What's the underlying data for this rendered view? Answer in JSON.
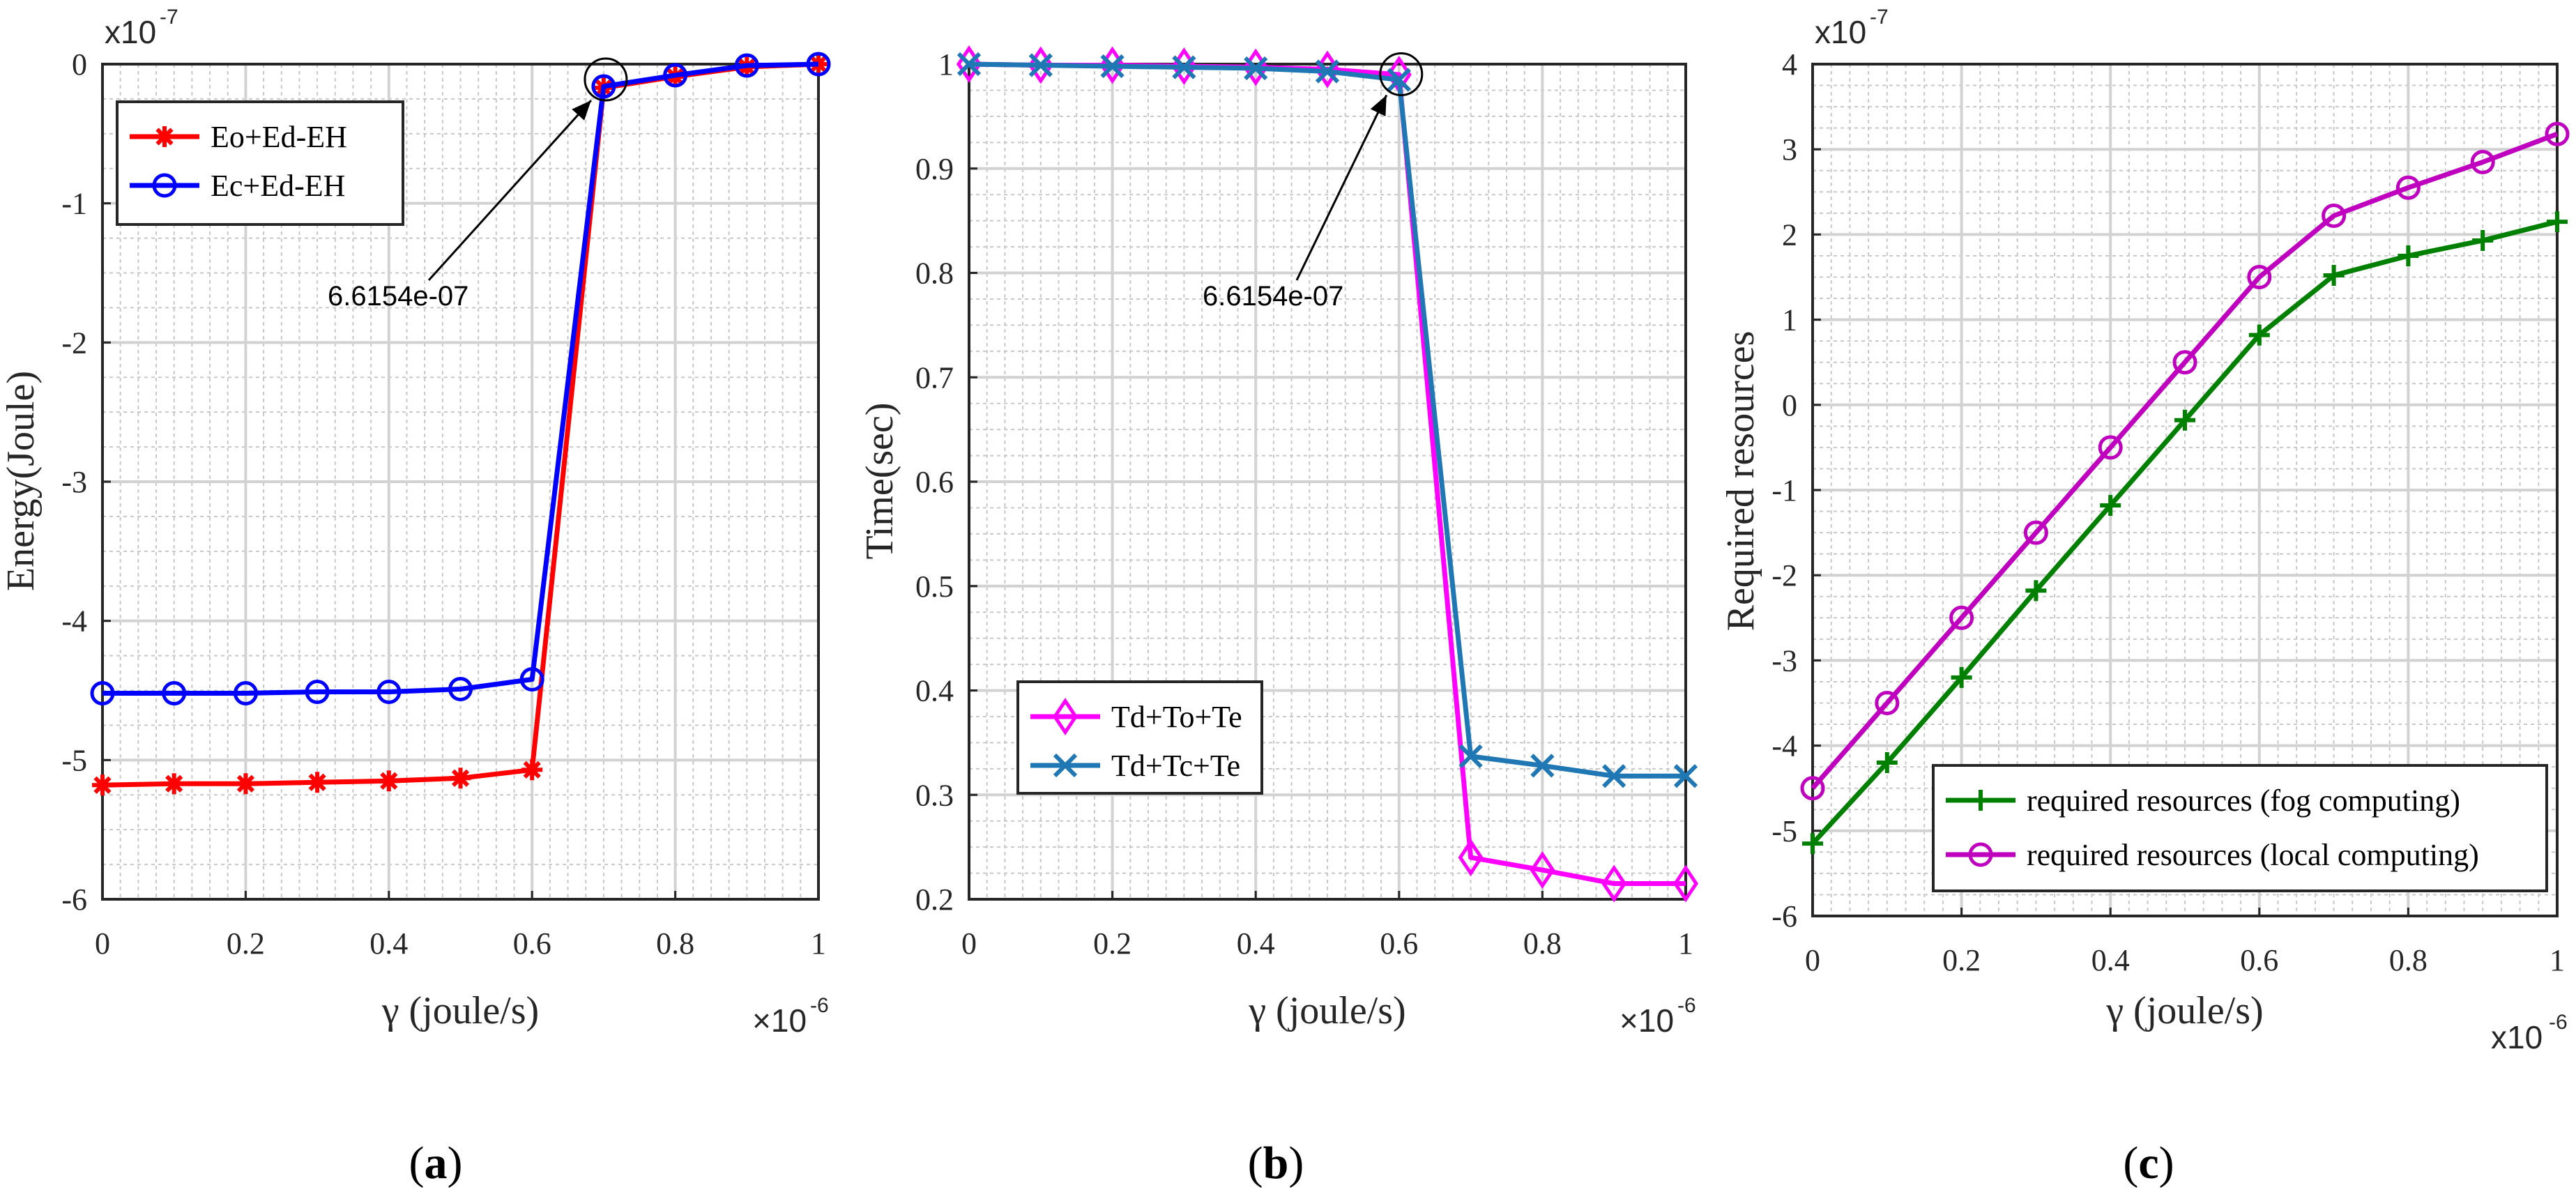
{
  "chart_data": [
    {
      "type": "line",
      "caption": "(a)",
      "caption_letter": "a",
      "xlabel": "γ (joule/s)",
      "ylabel": "Energy(Joule)",
      "x_multiplier": "×10",
      "x_multiplier_exp": "-6",
      "y_multiplier": "x10",
      "y_multiplier_exp": "-7",
      "xlim": [
        0,
        1
      ],
      "ylim": [
        -6,
        0
      ],
      "xticks": [
        "0",
        "0.2",
        "0.4",
        "0.6",
        "0.8",
        "1"
      ],
      "yticks": [
        "0",
        "-1",
        "-2",
        "-3",
        "-4",
        "-5",
        "-6"
      ],
      "x": [
        0,
        0.1,
        0.2,
        0.3,
        0.4,
        0.5,
        0.6,
        0.7,
        0.8,
        0.9,
        1.0
      ],
      "series": [
        {
          "name": "Eo+Ed-EH",
          "color": "#ff0000",
          "marker": "asterisk",
          "values": [
            -5.18,
            -5.17,
            -5.17,
            -5.16,
            -5.15,
            -5.13,
            -5.07,
            -0.17,
            -0.09,
            -0.02,
            0.0
          ]
        },
        {
          "name": "Ec+Ed-EH",
          "color": "#0000ff",
          "marker": "circle",
          "values": [
            -4.52,
            -4.52,
            -4.52,
            -4.51,
            -4.51,
            -4.49,
            -4.42,
            -0.16,
            -0.08,
            -0.01,
            0.0
          ]
        }
      ],
      "annotation": {
        "text": "6.6154e-07",
        "x": 0.7,
        "y": -0.15
      },
      "legend": "top-left",
      "grid": true
    },
    {
      "type": "line",
      "caption": "(b)",
      "caption_letter": "b",
      "xlabel": "γ (joule/s)",
      "ylabel": "Time(sec)",
      "x_multiplier": "×10",
      "x_multiplier_exp": "-6",
      "xlim": [
        0,
        1
      ],
      "ylim": [
        0.2,
        1.0
      ],
      "xticks": [
        "0",
        "0.2",
        "0.4",
        "0.6",
        "0.8",
        "1"
      ],
      "yticks": [
        "1",
        "0.9",
        "0.8",
        "0.7",
        "0.6",
        "0.5",
        "0.4",
        "0.3",
        "0.2"
      ],
      "x": [
        0,
        0.1,
        0.2,
        0.3,
        0.4,
        0.5,
        0.6,
        0.7,
        0.8,
        0.9,
        1.0
      ],
      "series": [
        {
          "name": "Td+To+Te",
          "color": "#ff00ff",
          "marker": "diamond",
          "values": [
            1.0,
            0.999,
            0.999,
            0.998,
            0.997,
            0.995,
            0.99,
            0.24,
            0.228,
            0.215,
            0.215
          ]
        },
        {
          "name": "Td+Tc+Te",
          "color": "#1f77b4",
          "marker": "x",
          "values": [
            1.0,
            0.999,
            0.998,
            0.997,
            0.996,
            0.993,
            0.985,
            0.337,
            0.328,
            0.318,
            0.318
          ]
        }
      ],
      "annotation": {
        "text": "6.6154e-07",
        "x": 0.6,
        "y": 0.985
      },
      "legend": "bottom-left",
      "grid": true
    },
    {
      "type": "line",
      "caption": "(c)",
      "caption_letter": "c",
      "xlabel": "γ (joule/s)",
      "ylabel": "Required resources",
      "x_multiplier": "x10",
      "x_multiplier_exp": "-6",
      "y_multiplier": "x10",
      "y_multiplier_exp": "-7",
      "xlim": [
        0,
        1
      ],
      "ylim": [
        -6,
        4
      ],
      "xticks": [
        "0",
        "0.2",
        "0.4",
        "0.6",
        "0.8",
        "1"
      ],
      "yticks": [
        "4",
        "3",
        "2",
        "1",
        "0",
        "-1",
        "-2",
        "-3",
        "-4",
        "-5",
        "-6"
      ],
      "x": [
        0,
        0.1,
        0.2,
        0.3,
        0.4,
        0.5,
        0.6,
        0.7,
        0.8,
        0.9,
        1.0
      ],
      "series": [
        {
          "name": "required resources (fog computing)",
          "color": "#008000",
          "marker": "plus",
          "values": [
            -5.15,
            -4.2,
            -3.2,
            -2.18,
            -1.18,
            -0.18,
            0.82,
            1.52,
            1.75,
            1.93,
            2.15
          ]
        },
        {
          "name": "required resources (local computing)",
          "color": "#bf00bf",
          "marker": "circle",
          "values": [
            -4.5,
            -3.5,
            -2.5,
            -1.5,
            -0.5,
            0.5,
            1.5,
            2.22,
            2.55,
            2.85,
            3.18
          ]
        }
      ],
      "legend": "bottom-right",
      "grid": true
    }
  ]
}
